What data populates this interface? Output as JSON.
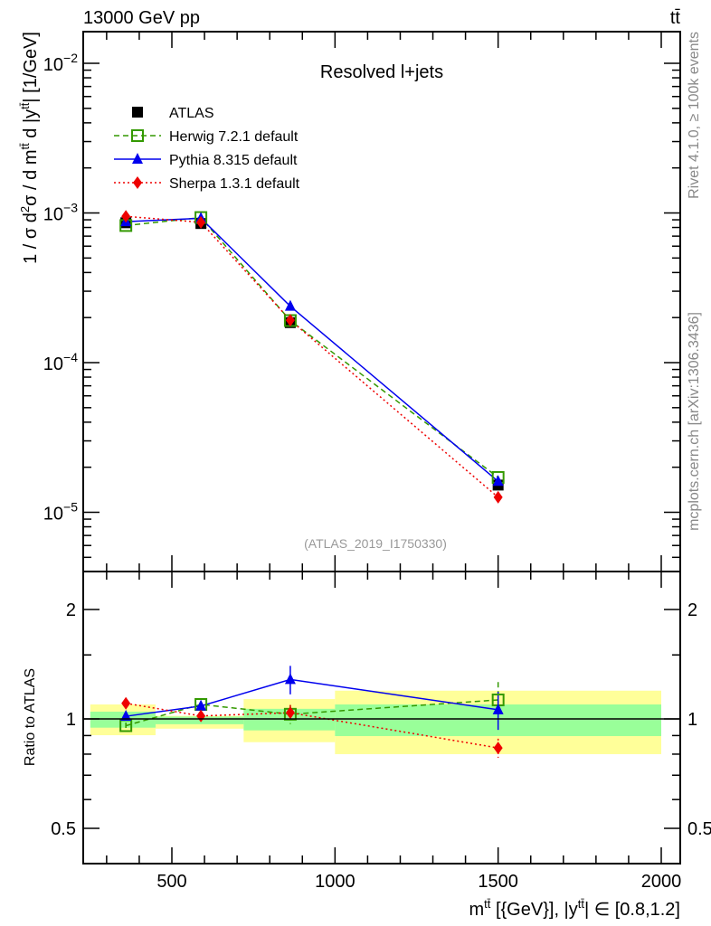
{
  "chart_data": [
    {
      "type": "line",
      "title": "Resolved l+jets",
      "header_left": "13000 GeV pp",
      "header_right": "t^{t̄}",
      "xlabel": "m^{tt̄} [{GeV}], |y^{tt̄}| ∈ [0.8,1.2]",
      "ylabel": "1 / σ d^{2}σ / d m^{tt̄} d |y^{tt̄}| [1/GeV]",
      "yscale": "log",
      "xlim": [
        228,
        2058
      ],
      "ylim": [
        1.6e-06,
        0.0162
      ],
      "x_ticks": [
        500,
        1000,
        1500,
        2000
      ],
      "y_tick_labels": [
        {
          "value": 0.01,
          "base": "10",
          "exp": "−2"
        },
        {
          "value": 0.001,
          "base": "10",
          "exp": "−3"
        },
        {
          "value": 0.0001,
          "base": "10",
          "exp": "−4"
        },
        {
          "value": 1e-05,
          "base": "10",
          "exp": "−5"
        }
      ],
      "legend_position": "top-left",
      "watermark": "(ATLAS_2019_I1750330)",
      "bins": [
        [
          250,
          450
        ],
        [
          450,
          720
        ],
        [
          720,
          1000
        ],
        [
          1000,
          2000
        ]
      ],
      "x": [
        359,
        589,
        863,
        1500
      ],
      "series": [
        {
          "name": "ATLAS",
          "color": "#000000",
          "marker": "square",
          "values": [
            0.00086,
            0.00085,
            0.000185,
            1.52e-05
          ]
        },
        {
          "name": "Herwig 7.2.1 default",
          "color": "#339900",
          "marker": "open-square",
          "line": "dashed",
          "values": [
            0.000824,
            0.000932,
            0.000191,
            1.71e-05
          ]
        },
        {
          "name": "Pythia 8.315 default",
          "color": "#0000ee",
          "marker": "triangle",
          "line": "solid",
          "values": [
            0.000875,
            0.000922,
            0.000238,
            1.61e-05
          ]
        },
        {
          "name": "Sherpa 1.3.1 default",
          "color": "#ee0000",
          "marker": "diamond",
          "line": "dotted",
          "values": [
            0.000949,
            0.000866,
            0.000192,
            1.26e-05
          ]
        }
      ]
    },
    {
      "type": "line",
      "ylabel": "Ratio to ATLAS",
      "yscale": "log",
      "ylim": [
        0.4,
        2.54
      ],
      "y_ticks": [
        {
          "value": 2,
          "label": "2"
        },
        {
          "value": 1,
          "label": "1"
        },
        {
          "value": 0.5,
          "label": "0.5"
        }
      ],
      "x_ticks": [
        {
          "value": 500,
          "label": "500"
        },
        {
          "value": 1000,
          "label": "1000"
        },
        {
          "value": 1500,
          "label": "1500"
        },
        {
          "value": 2000,
          "label": "2000"
        }
      ],
      "bands": {
        "stat": {
          "color": "#99ff99",
          "low": [
            0.946,
            0.967,
            0.93,
            0.897
          ],
          "high": [
            1.047,
            1.015,
            1.066,
            1.096
          ]
        },
        "total": {
          "color": "#ffff99",
          "low": [
            0.902,
            0.94,
            0.863,
            0.8
          ],
          "high": [
            1.096,
            1.02,
            1.134,
            1.196
          ]
        }
      },
      "series": [
        {
          "name": "Herwig 7.2.1 default",
          "values": [
            0.958,
            1.096,
            1.03,
            1.128
          ],
          "err": [
            0.02,
            0.02,
            0.06,
            0.12
          ]
        },
        {
          "name": "Pythia 8.315 default",
          "values": [
            1.017,
            1.085,
            1.284,
            1.06
          ],
          "err": [
            0.03,
            0.02,
            0.09,
            0.12
          ]
        },
        {
          "name": "Sherpa 1.3.1 default",
          "values": [
            1.104,
            1.019,
            1.04,
            0.832
          ],
          "err": [
            0.01,
            0.01,
            0.05,
            0.06
          ]
        }
      ]
    }
  ],
  "side_texts": {
    "rivet": "Rivet 4.1.0, ≥ 100k events",
    "mcplots": "mcplots.cern.ch [arXiv:1306.3436]"
  }
}
